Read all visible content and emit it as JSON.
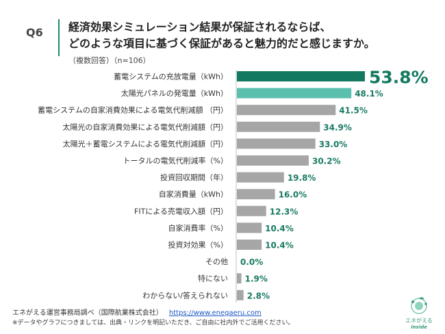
{
  "header": {
    "question": "Q6",
    "title_line1": "経済効果シミュレーション結果が保証されるならば、",
    "title_line2": "どのような項目に基づく保証があると魅力的だと感じますか。",
    "subtitle": "（複数回答）（n=106）"
  },
  "chart_data": {
    "type": "bar",
    "orientation": "horizontal",
    "title": "経済効果シミュレーション結果が保証されるならば、どのような項目に基づく保証があると魅力的だと感じますか。",
    "categories": [
      "蓄電システムの充放電量（kWh）",
      "太陽光パネルの発電量（kWh）",
      "蓄電システムの自家消費効果による電気代削減額 （円）",
      "太陽光の自家消費効果による電気代削減額（円）",
      "太陽光＋蓄電システムによる電気代削減額（円）",
      "トータルの電気代削減率（%）",
      "投資回収期間（年）",
      "自家消費量（kWh）",
      "FITによる売電収入額（円）",
      "自家消費率（%）",
      "投資対効果（%）",
      "その他",
      "特にない",
      "わからない/答えられない"
    ],
    "values": [
      53.8,
      48.1,
      41.5,
      34.9,
      33.0,
      30.2,
      19.8,
      16.0,
      12.3,
      10.4,
      10.4,
      0.0,
      1.9,
      2.8
    ],
    "labels": [
      "53.8%",
      "48.1%",
      "41.5%",
      "34.9%",
      "33.0%",
      "30.2%",
      "19.8%",
      "16.0%",
      "12.3%",
      "10.4%",
      "10.4%",
      "0.0%",
      "1.9%",
      "2.8%"
    ],
    "xlim": [
      0,
      60
    ],
    "unit": "%",
    "colors": {
      "top": "#137a5f",
      "second": "#5bbfae",
      "rest": "#a6a6a6",
      "label": "#1a7a63"
    }
  },
  "footer": {
    "source": "エネがえる運営事務局調べ（国際航業株式会社）",
    "url": "https://www.enegaeru.com",
    "note": "※データやグラフにつきましては、出典・リンクを明記いただき、ご自由に社内外でご活用ください。"
  },
  "logo": {
    "name": "エネがえる",
    "sub": "inside"
  }
}
